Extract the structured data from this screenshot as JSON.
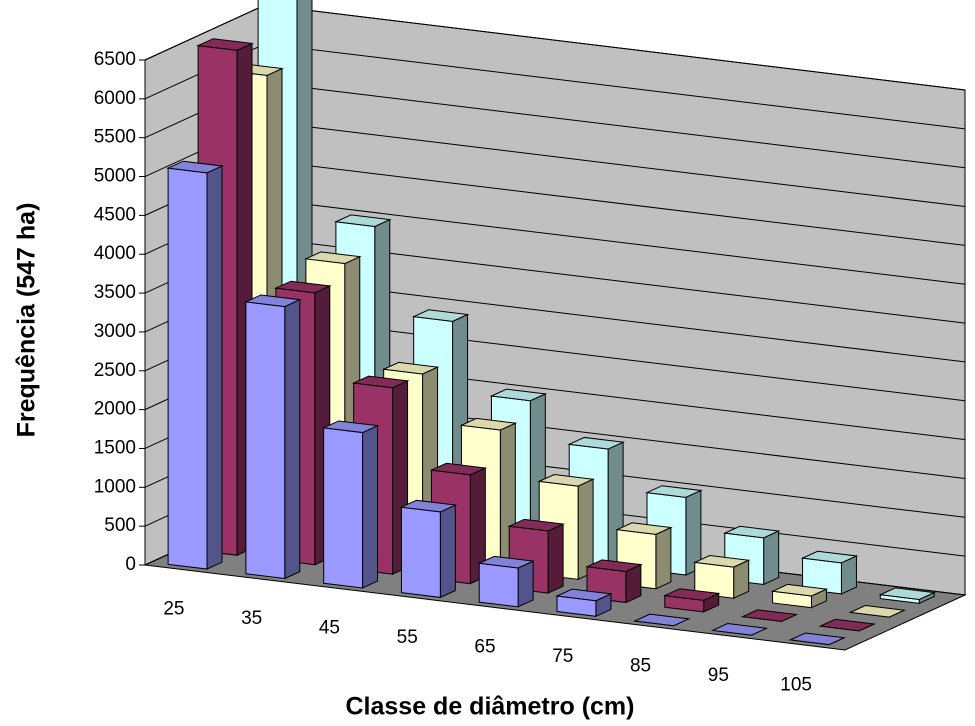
{
  "chart_data": {
    "type": "bar3d",
    "x_label": "Classe de diâmetro (cm)",
    "y_label": "Frequência (547 ha)",
    "categories": [
      "25",
      "35",
      "45",
      "55",
      "65",
      "75",
      "85",
      "95",
      "105"
    ],
    "series": [
      {
        "color": "#9999ff",
        "values": [
          5100,
          3500,
          2000,
          1100,
          500,
          200,
          0,
          0,
          0
        ]
      },
      {
        "color": "#993366",
        "values": [
          6500,
          3500,
          2400,
          1400,
          800,
          400,
          150,
          0,
          0
        ]
      },
      {
        "color": "#ffffcc",
        "values": [
          6000,
          3700,
          2400,
          1800,
          1200,
          700,
          400,
          150,
          0
        ]
      },
      {
        "color": "#ccffff",
        "values": [
          6800,
          4000,
          2900,
          2000,
          1500,
          1000,
          600,
          400,
          50
        ]
      }
    ],
    "ylim": [
      0,
      6500
    ],
    "yticks": [
      0,
      500,
      1000,
      1500,
      2000,
      2500,
      3000,
      3500,
      4000,
      4500,
      5000,
      5500,
      6000,
      6500
    ],
    "grid": true
  }
}
